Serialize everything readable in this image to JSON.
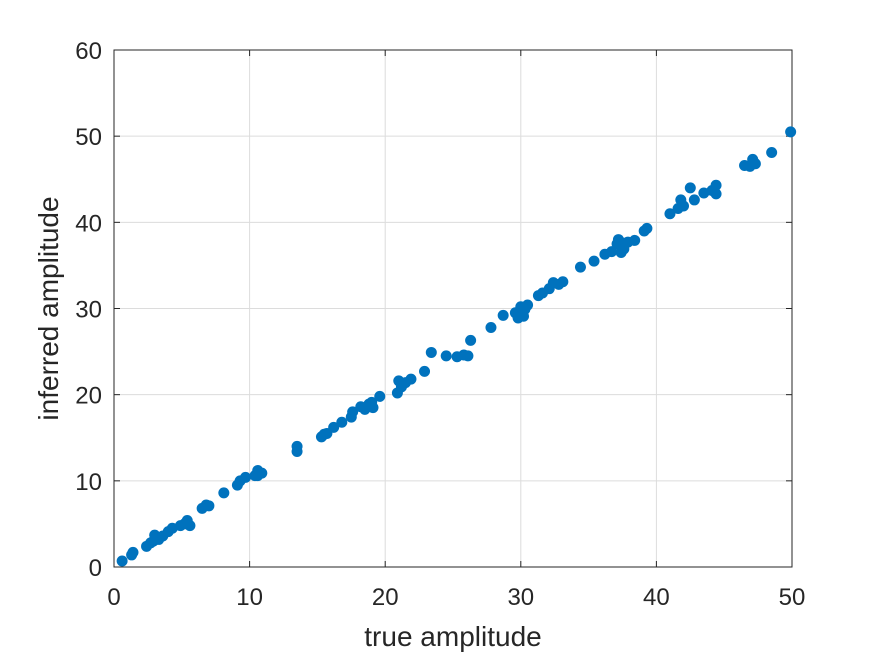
{
  "chart_data": {
    "type": "scatter",
    "title": "",
    "xlabel": "true amplitude",
    "ylabel": "inferred amplitude",
    "xlim": [
      0,
      50
    ],
    "ylim": [
      0,
      60
    ],
    "xticks": [
      0,
      10,
      20,
      30,
      40,
      50
    ],
    "yticks": [
      0,
      10,
      20,
      30,
      40,
      50,
      60
    ],
    "xtick_labels": [
      "0",
      "10",
      "20",
      "30",
      "40",
      "50"
    ],
    "ytick_labels": [
      "0",
      "10",
      "20",
      "30",
      "40",
      "50",
      "60"
    ],
    "grid": true,
    "marker_color": "#0072BD",
    "x": [
      0.6,
      1.3,
      1.4,
      2.4,
      2.7,
      2.9,
      3.0,
      3.3,
      3.6,
      4.0,
      4.3,
      4.9,
      5.2,
      5.4,
      5.6,
      6.5,
      6.8,
      7.0,
      8.1,
      9.1,
      9.3,
      9.7,
      10.4,
      10.6,
      10.9,
      10.6,
      13.5,
      13.5,
      15.3,
      15.5,
      15.7,
      16.2,
      16.8,
      17.5,
      17.6,
      18.2,
      18.5,
      18.8,
      19.1,
      19.0,
      19.6,
      20.9,
      21.0,
      21.2,
      21.5,
      21.9,
      22.9,
      23.4,
      24.5,
      25.3,
      25.8,
      26.1,
      26.3,
      27.8,
      28.7,
      29.6,
      29.8,
      30.0,
      30.1,
      30.2,
      30.5,
      30.3,
      31.3,
      31.6,
      32.1,
      32.4,
      32.8,
      33.1,
      34.4,
      35.4,
      36.2,
      36.7,
      37.1,
      37.2,
      37.4,
      37.5,
      37.6,
      37.9,
      38.4,
      39.1,
      39.3,
      41.0,
      41.6,
      41.8,
      42.0,
      42.5,
      42.8,
      43.5,
      44.1,
      44.4,
      44.4,
      46.5,
      46.9,
      47.1,
      47.3,
      48.5,
      49.9
    ],
    "y": [
      0.7,
      1.4,
      1.7,
      2.4,
      2.8,
      3.0,
      3.7,
      3.2,
      3.6,
      4.1,
      4.5,
      4.8,
      5.0,
      5.4,
      4.8,
      6.8,
      7.2,
      7.1,
      8.6,
      9.5,
      10.0,
      10.4,
      10.6,
      11.2,
      10.9,
      10.6,
      13.4,
      14.0,
      15.1,
      15.4,
      15.5,
      16.2,
      16.8,
      17.4,
      18.0,
      18.6,
      18.3,
      18.9,
      18.5,
      19.1,
      19.8,
      20.2,
      21.6,
      20.9,
      21.4,
      21.8,
      22.7,
      24.9,
      24.5,
      24.4,
      24.6,
      24.5,
      26.3,
      27.8,
      29.2,
      29.5,
      28.9,
      30.2,
      30.0,
      29.1,
      30.4,
      29.9,
      31.5,
      31.8,
      32.3,
      33.0,
      32.8,
      33.1,
      34.8,
      35.5,
      36.3,
      36.6,
      37.5,
      38.0,
      36.5,
      37.6,
      36.9,
      37.7,
      37.9,
      39.0,
      39.3,
      41.0,
      41.6,
      42.6,
      41.9,
      44.0,
      42.6,
      43.4,
      43.7,
      44.3,
      43.3,
      46.6,
      46.5,
      47.3,
      46.8,
      48.1,
      50.5
    ]
  }
}
